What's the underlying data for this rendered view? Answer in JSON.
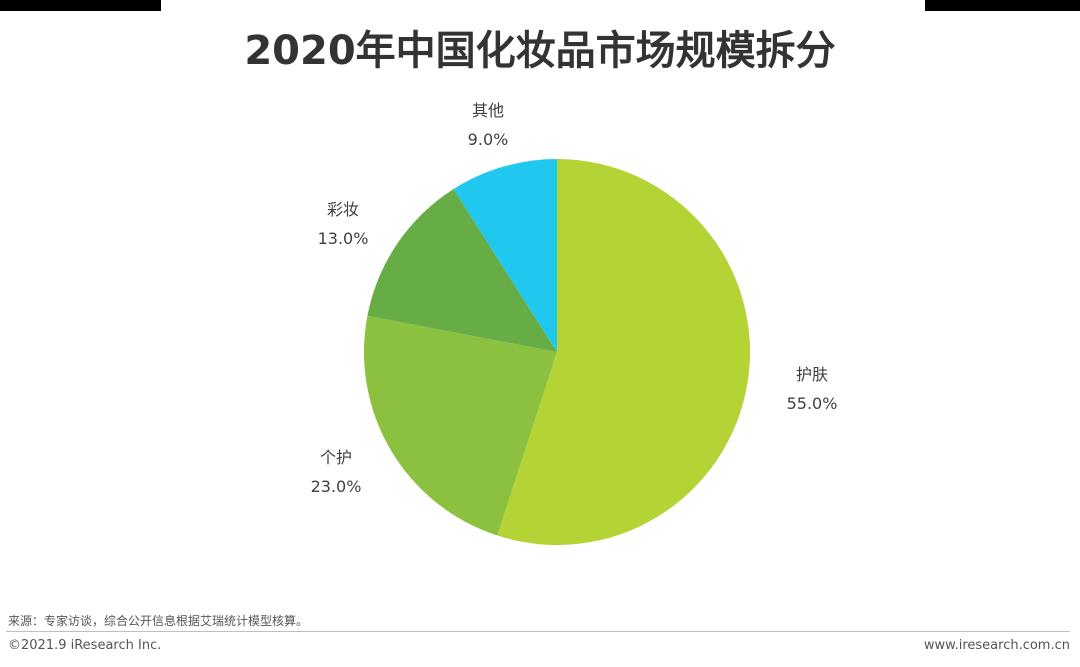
{
  "chart_data": {
    "type": "pie",
    "title": "2020年中国化妆品市场规模拆分",
    "slices": [
      {
        "label": "护肤",
        "value": 55.0,
        "display": "55.0%",
        "color": "#b4d334"
      },
      {
        "label": "个护",
        "value": 23.0,
        "display": "23.0%",
        "color": "#8cc13f"
      },
      {
        "label": "彩妆",
        "value": 13.0,
        "display": "13.0%",
        "color": "#67ad45"
      },
      {
        "label": "其他",
        "value": 9.0,
        "display": "9.0%",
        "color": "#20c8f0"
      }
    ],
    "start_angle": "12 o'clock",
    "direction": "clockwise",
    "legend": "none"
  },
  "footer": {
    "source": "来源：专家访谈，综合公开信息根据艾瑞统计模型核算。",
    "copyright": "©2021.9 iResearch Inc.",
    "website": "www.iresearch.com.cn"
  }
}
